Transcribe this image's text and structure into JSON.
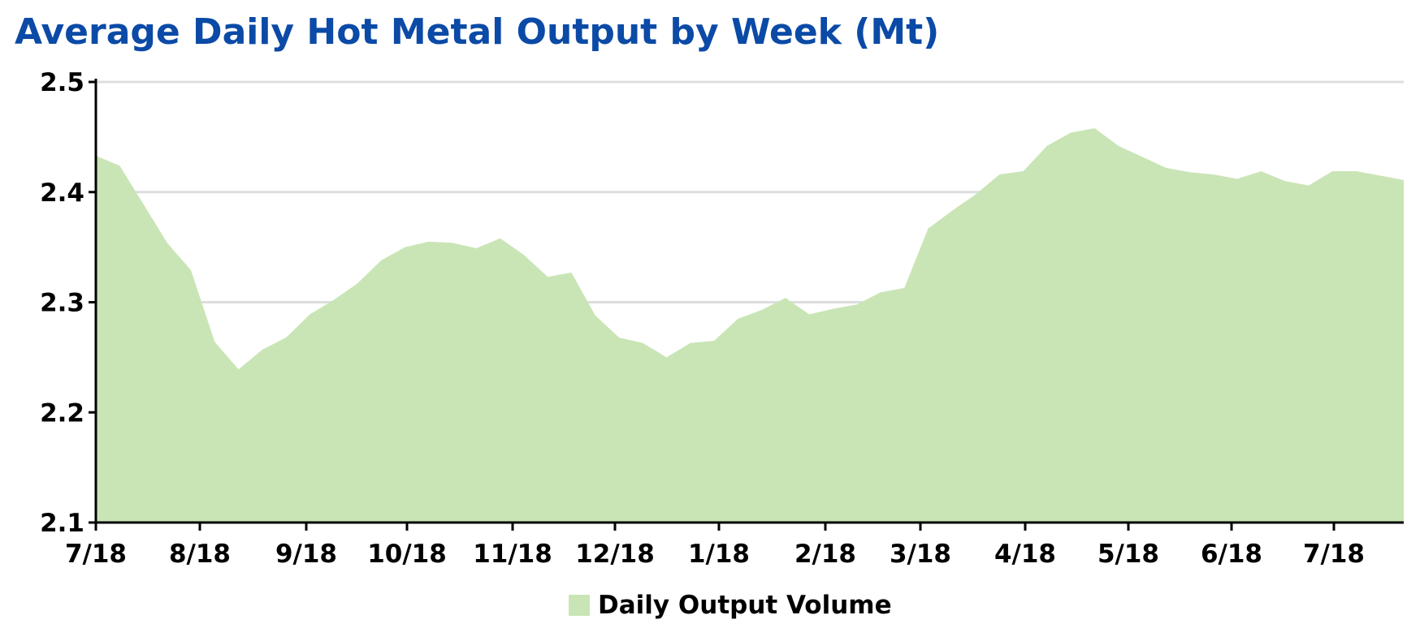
{
  "chart_data": {
    "type": "area",
    "title": "Average Daily Hot Metal Output by Week (Mt)",
    "xlabel": "",
    "ylabel": "",
    "ylim": [
      2.1,
      2.5
    ],
    "yticks": [
      "2.1",
      "2.2",
      "2.3",
      "2.4",
      "2.5"
    ],
    "xticks": [
      "7/18",
      "8/18",
      "9/18",
      "10/18",
      "11/18",
      "12/18",
      "1/18",
      "2/18",
      "3/18",
      "4/18",
      "5/18",
      "6/18",
      "7/18"
    ],
    "grid": "horizontal",
    "legend_position": "bottom",
    "fill_color": "#c9e5b6",
    "grid_color": "#dddddd",
    "series": [
      {
        "name": "Daily Output Volume",
        "values": [
          2.433,
          2.424,
          2.389,
          2.354,
          2.329,
          2.264,
          2.239,
          2.257,
          2.268,
          2.289,
          2.302,
          2.317,
          2.338,
          2.35,
          2.355,
          2.354,
          2.349,
          2.358,
          2.343,
          2.323,
          2.327,
          2.288,
          2.268,
          2.263,
          2.25,
          2.263,
          2.265,
          2.285,
          2.293,
          2.304,
          2.289,
          2.294,
          2.298,
          2.309,
          2.313,
          2.367,
          2.383,
          2.398,
          2.416,
          2.419,
          2.442,
          2.454,
          2.458,
          2.442,
          2.432,
          2.422,
          2.418,
          2.416,
          2.412,
          2.419,
          2.41,
          2.406,
          2.419,
          2.419,
          2.415,
          2.411
        ]
      }
    ]
  }
}
